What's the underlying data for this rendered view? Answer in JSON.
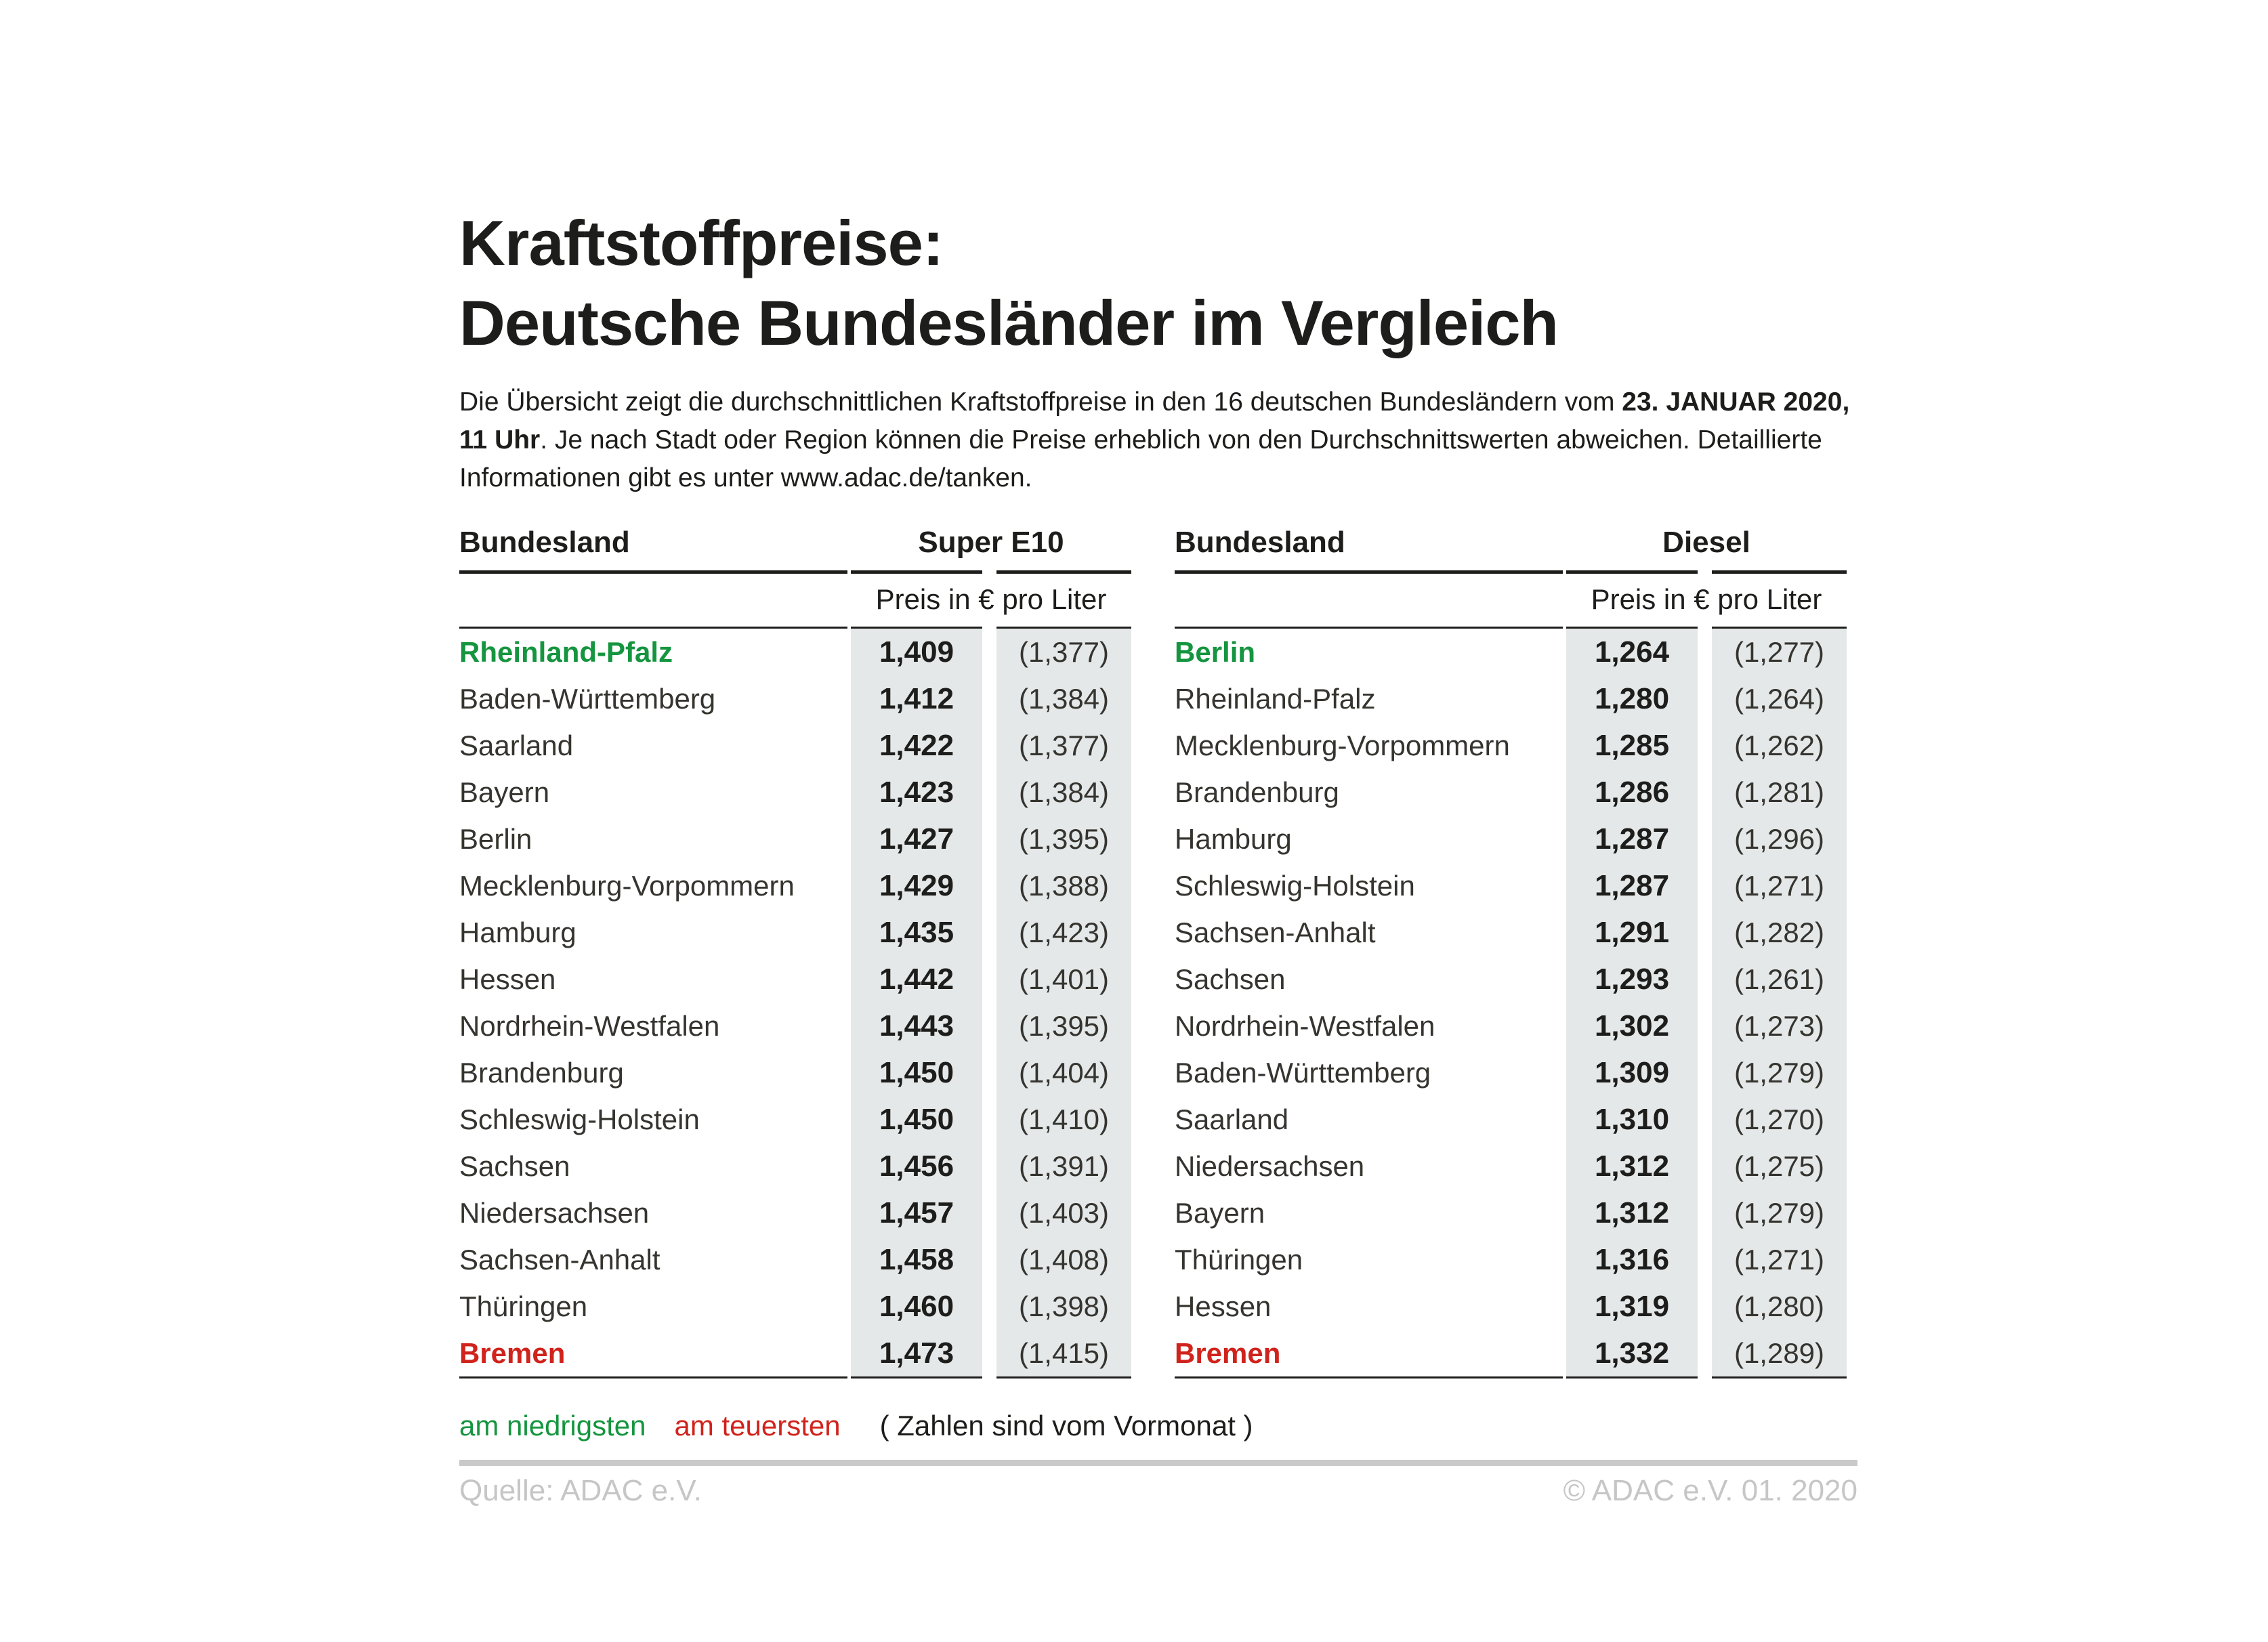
{
  "title": {
    "line1": "Kraftstoffpreise:",
    "line2": "Deutsche Bundesländer im Vergleich"
  },
  "intro_parts": [
    {
      "t": "Die Übersicht zeigt die durchschnittlichen Kraftstoffpreise in den 16 deutschen Bundesländern vom ",
      "b": false
    },
    {
      "t": "23. JANUAR 2020, 11 Uhr",
      "b": true
    },
    {
      "t": ". Je nach Stadt oder Region können die Preise erheblich von den Durchschnittswerten abweichen. Detaillierte Informationen gibt es unter www.adac.de/tanken.",
      "b": false
    }
  ],
  "tables": [
    {
      "col_land": "Bundesland",
      "col_fuel": "Super E10",
      "subheader": "Preis in € pro Liter",
      "rows": [
        {
          "land": "Rheinland-Pfalz",
          "price": "1,409",
          "prev": "(1,377)",
          "highlight": "lowest"
        },
        {
          "land": "Baden-Württemberg",
          "price": "1,412",
          "prev": "(1,384)"
        },
        {
          "land": "Saarland",
          "price": "1,422",
          "prev": "(1,377)"
        },
        {
          "land": "Bayern",
          "price": "1,423",
          "prev": "(1,384)"
        },
        {
          "land": "Berlin",
          "price": "1,427",
          "prev": "(1,395)"
        },
        {
          "land": "Mecklenburg-Vorpommern",
          "price": "1,429",
          "prev": "(1,388)"
        },
        {
          "land": "Hamburg",
          "price": "1,435",
          "prev": "(1,423)"
        },
        {
          "land": "Hessen",
          "price": "1,442",
          "prev": "(1,401)"
        },
        {
          "land": "Nordrhein-Westfalen",
          "price": "1,443",
          "prev": "(1,395)"
        },
        {
          "land": "Brandenburg",
          "price": "1,450",
          "prev": "(1,404)"
        },
        {
          "land": "Schleswig-Holstein",
          "price": "1,450",
          "prev": "(1,410)"
        },
        {
          "land": "Sachsen",
          "price": "1,456",
          "prev": "(1,391)"
        },
        {
          "land": "Niedersachsen",
          "price": "1,457",
          "prev": "(1,403)"
        },
        {
          "land": "Sachsen-Anhalt",
          "price": "1,458",
          "prev": "(1,408)"
        },
        {
          "land": "Thüringen",
          "price": "1,460",
          "prev": "(1,398)"
        },
        {
          "land": "Bremen",
          "price": "1,473",
          "prev": "(1,415)",
          "highlight": "highest"
        }
      ]
    },
    {
      "col_land": "Bundesland",
      "col_fuel": "Diesel",
      "subheader": "Preis in € pro Liter",
      "rows": [
        {
          "land": "Berlin",
          "price": "1,264",
          "prev": "(1,277)",
          "highlight": "lowest"
        },
        {
          "land": "Rheinland-Pfalz",
          "price": "1,280",
          "prev": "(1,264)"
        },
        {
          "land": "Mecklenburg-Vorpommern",
          "price": "1,285",
          "prev": "(1,262)"
        },
        {
          "land": "Brandenburg",
          "price": "1,286",
          "prev": "(1,281)"
        },
        {
          "land": "Hamburg",
          "price": "1,287",
          "prev": "(1,296)"
        },
        {
          "land": "Schleswig-Holstein",
          "price": "1,287",
          "prev": "(1,271)"
        },
        {
          "land": "Sachsen-Anhalt",
          "price": "1,291",
          "prev": "(1,282)"
        },
        {
          "land": "Sachsen",
          "price": "1,293",
          "prev": "(1,261)"
        },
        {
          "land": "Nordrhein-Westfalen",
          "price": "1,302",
          "prev": "(1,273)"
        },
        {
          "land": "Baden-Württemberg",
          "price": "1,309",
          "prev": "(1,279)"
        },
        {
          "land": "Saarland",
          "price": "1,310",
          "prev": "(1,270)"
        },
        {
          "land": "Niedersachsen",
          "price": "1,312",
          "prev": "(1,275)"
        },
        {
          "land": "Bayern",
          "price": "1,312",
          "prev": "(1,279)"
        },
        {
          "land": "Thüringen",
          "price": "1,316",
          "prev": "(1,271)"
        },
        {
          "land": "Hessen",
          "price": "1,319",
          "prev": "(1,280)"
        },
        {
          "land": "Bremen",
          "price": "1,332",
          "prev": "(1,289)",
          "highlight": "highest"
        }
      ]
    }
  ],
  "legend": {
    "lowest": "am niedrigsten",
    "highest": "am teuersten",
    "note": "( Zahlen sind vom Vormonat )"
  },
  "footer": {
    "source": "Quelle: ADAC e.V.",
    "copyright": "© ADAC e.V. 01. 2020"
  },
  "colors": {
    "green": "#15953f",
    "red": "#d0231c",
    "ink": "#1d1d1b",
    "name_text": "#35342f",
    "shade": "#e4e8e9",
    "bar": "#c9c9c9",
    "footer_text": "#c6c6c6"
  },
  "chart_data": [
    {
      "type": "table",
      "title": "Super E10",
      "unit": "Preis in € pro Liter",
      "columns": [
        "Bundesland",
        "Preis",
        "Vormonat"
      ],
      "rows": [
        [
          "Rheinland-Pfalz",
          1.409,
          1.377
        ],
        [
          "Baden-Württemberg",
          1.412,
          1.384
        ],
        [
          "Saarland",
          1.422,
          1.377
        ],
        [
          "Bayern",
          1.423,
          1.384
        ],
        [
          "Berlin",
          1.427,
          1.395
        ],
        [
          "Mecklenburg-Vorpommern",
          1.429,
          1.388
        ],
        [
          "Hamburg",
          1.435,
          1.423
        ],
        [
          "Hessen",
          1.442,
          1.401
        ],
        [
          "Nordrhein-Westfalen",
          1.443,
          1.395
        ],
        [
          "Brandenburg",
          1.45,
          1.404
        ],
        [
          "Schleswig-Holstein",
          1.45,
          1.41
        ],
        [
          "Sachsen",
          1.456,
          1.391
        ],
        [
          "Niedersachsen",
          1.457,
          1.403
        ],
        [
          "Sachsen-Anhalt",
          1.458,
          1.408
        ],
        [
          "Thüringen",
          1.46,
          1.398
        ],
        [
          "Bremen",
          1.473,
          1.415
        ]
      ],
      "annotations": {
        "lowest": "Rheinland-Pfalz",
        "highest": "Bremen",
        "date": "23. Januar 2020, 11 Uhr"
      }
    },
    {
      "type": "table",
      "title": "Diesel",
      "unit": "Preis in € pro Liter",
      "columns": [
        "Bundesland",
        "Preis",
        "Vormonat"
      ],
      "rows": [
        [
          "Berlin",
          1.264,
          1.277
        ],
        [
          "Rheinland-Pfalz",
          1.28,
          1.264
        ],
        [
          "Mecklenburg-Vorpommern",
          1.285,
          1.262
        ],
        [
          "Brandenburg",
          1.286,
          1.281
        ],
        [
          "Hamburg",
          1.287,
          1.296
        ],
        [
          "Schleswig-Holstein",
          1.287,
          1.271
        ],
        [
          "Sachsen-Anhalt",
          1.291,
          1.282
        ],
        [
          "Sachsen",
          1.293,
          1.261
        ],
        [
          "Nordrhein-Westfalen",
          1.302,
          1.273
        ],
        [
          "Baden-Württemberg",
          1.309,
          1.279
        ],
        [
          "Saarland",
          1.31,
          1.27
        ],
        [
          "Niedersachsen",
          1.312,
          1.275
        ],
        [
          "Bayern",
          1.312,
          1.279
        ],
        [
          "Thüringen",
          1.316,
          1.271
        ],
        [
          "Hessen",
          1.319,
          1.28
        ],
        [
          "Bremen",
          1.332,
          1.289
        ]
      ],
      "annotations": {
        "lowest": "Berlin",
        "highest": "Bremen",
        "date": "23. Januar 2020, 11 Uhr"
      }
    }
  ]
}
